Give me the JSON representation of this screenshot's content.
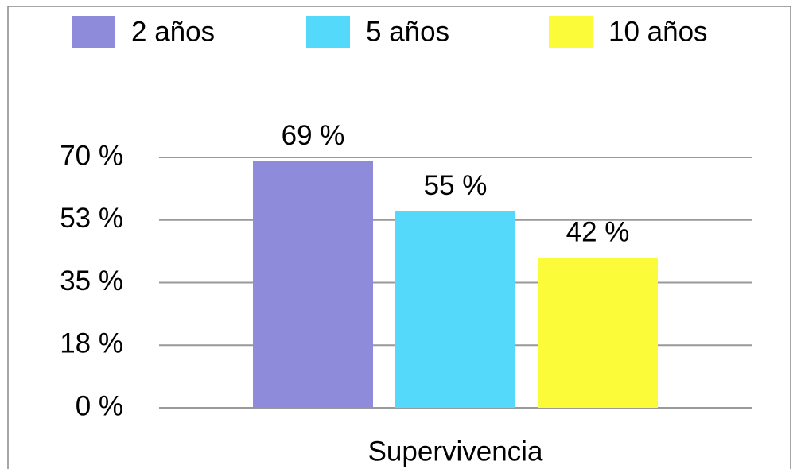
{
  "chart_data": {
    "type": "bar",
    "categories": [
      "Supervivencia"
    ],
    "series": [
      {
        "name": "2 años",
        "color": "#8f8bdb",
        "values": [
          69
        ],
        "value_labels": [
          "69 %"
        ]
      },
      {
        "name": "5 años",
        "color": "#55d9fb",
        "values": [
          55
        ],
        "value_labels": [
          "55 %"
        ]
      },
      {
        "name": "10 años",
        "color": "#fbfb3a",
        "values": [
          42
        ],
        "value_labels": [
          "42 %"
        ]
      }
    ],
    "ylim": [
      0,
      70
    ],
    "yticks": [
      {
        "value": 0,
        "label": "0 %"
      },
      {
        "value": 17.5,
        "label": "18 %"
      },
      {
        "value": 35,
        "label": "35 %"
      },
      {
        "value": 52.5,
        "label": "53 %"
      },
      {
        "value": 70,
        "label": "70 %"
      }
    ],
    "grid": true,
    "legend": "top"
  }
}
